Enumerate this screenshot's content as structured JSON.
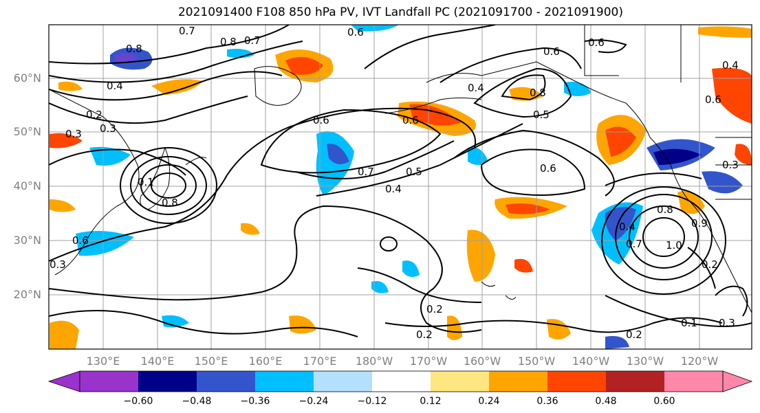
{
  "title": "2021091400 F108 850 hPa PV, IVT Landfall PC (2021091700 - 2021091900)",
  "lat_labels": [
    "60°N",
    "50°N",
    "40°N",
    "30°N",
    "20°N"
  ],
  "lon_labels": [
    "130°E",
    "140°E",
    "150°E",
    "160°E",
    "170°E",
    "180°W",
    "170°W",
    "160°W",
    "150°W",
    "140°W",
    "130°W",
    "120°W"
  ],
  "colorbar": {
    "ticks": [
      "−0.60",
      "−0.48",
      "−0.36",
      "−0.24",
      "−0.12",
      "0.12",
      "0.24",
      "0.36",
      "0.48",
      "0.60"
    ],
    "colors": [
      "#9933cc",
      "#000088",
      "#3355cc",
      "#00bfff",
      "#b3e0ff",
      "#ffffff",
      "#ffe680",
      "#ffa500",
      "#ff4500",
      "#b22222",
      "#ff88aa"
    ]
  },
  "contour_labels": [
    "0.7",
    "0.8",
    "0.7",
    "0.6",
    "0.8",
    "0.4",
    "0.3",
    "0.2",
    "0.6",
    "0.4",
    "0.5",
    "0.6",
    "0.7",
    "0.5",
    "0.4",
    "0.6",
    "0.8",
    "0.6",
    "0.3",
    "0.1",
    "0.6",
    "0.4",
    "0.3",
    "0.8",
    "0.7",
    "1.0",
    "0.9",
    "0.3",
    "0.2",
    "0.2",
    "0.2",
    "0.2",
    "0.1",
    "0.3",
    "0.6",
    "0.8",
    "0.4",
    "0.6"
  ]
}
